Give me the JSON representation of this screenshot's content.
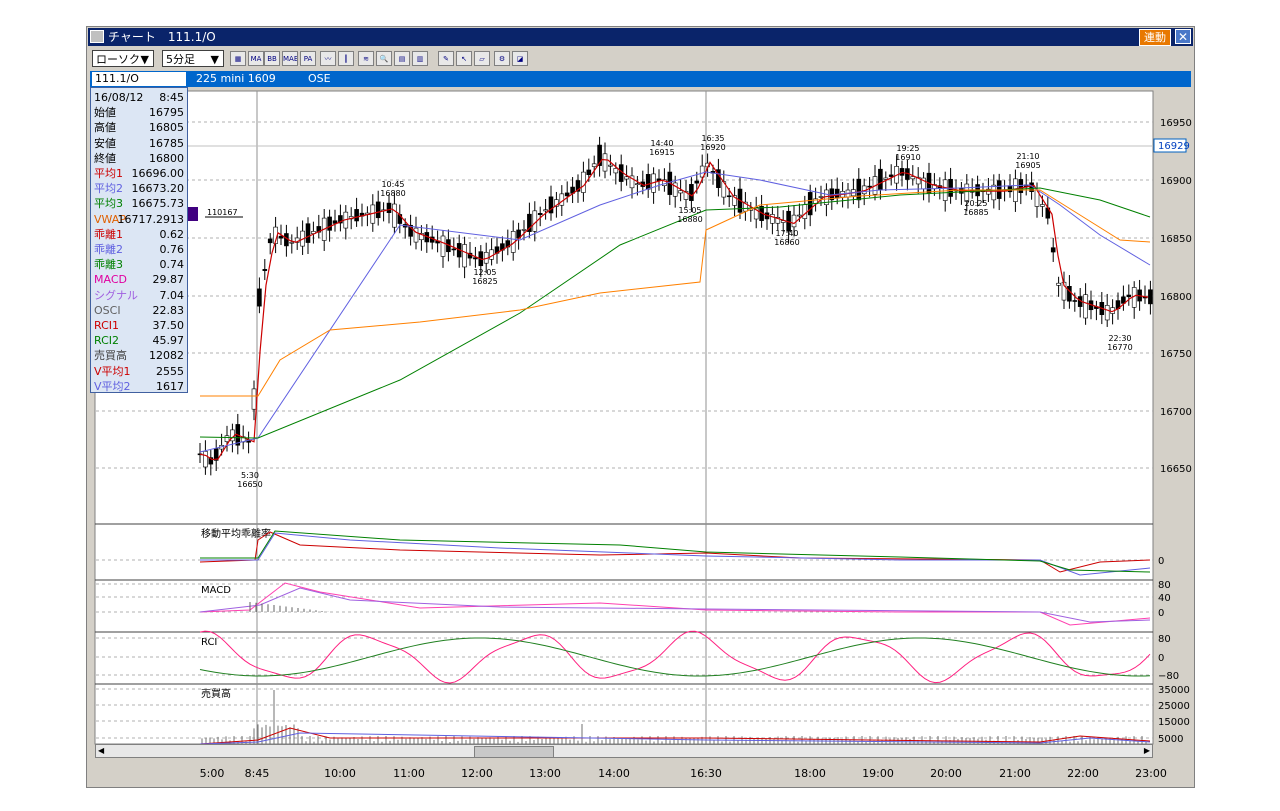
{
  "window": {
    "title": "チャート　111.1/O",
    "link_label": "連動",
    "close_label": "✕"
  },
  "toolbar": {
    "chart_type": "ローソク",
    "interval": "5分足",
    "tools": [
      {
        "name": "chart-icon",
        "label": "▦"
      },
      {
        "name": "ma-icon",
        "label": "MA"
      },
      {
        "name": "bb-icon",
        "label": "BB"
      },
      {
        "name": "mae-icon",
        "label": "MAE"
      },
      {
        "name": "pa-icon",
        "label": "PA"
      },
      {
        "name": "line-icon",
        "label": "〰"
      },
      {
        "name": "candle-icon",
        "label": "┃"
      },
      {
        "name": "fib-icon",
        "label": "≋"
      },
      {
        "name": "zoom-icon",
        "label": "🔍"
      },
      {
        "name": "table-icon",
        "label": "▤"
      },
      {
        "name": "bars-icon",
        "label": "▥"
      },
      {
        "name": "pen-icon",
        "label": "✎"
      },
      {
        "name": "cursor-icon",
        "label": "↖"
      },
      {
        "name": "eraser-icon",
        "label": "▱"
      },
      {
        "name": "settings-icon",
        "label": "⚙"
      },
      {
        "name": "clear-icon",
        "label": "◪"
      }
    ]
  },
  "infobar": {
    "symbol": "111.1/O",
    "instrument": "225 mini 1609",
    "exchange": "OSE"
  },
  "datapanel": {
    "rows": [
      {
        "label": "16/08/12",
        "value": "8:45",
        "color": "#000000"
      },
      {
        "label": "始値",
        "value": "16795",
        "color": "#000000"
      },
      {
        "label": "高値",
        "value": "16805",
        "color": "#000000"
      },
      {
        "label": "安値",
        "value": "16785",
        "color": "#000000"
      },
      {
        "label": "終値",
        "value": "16800",
        "color": "#000000"
      },
      {
        "label": "平均1",
        "value": "16696.00",
        "color": "#cc0000"
      },
      {
        "label": "平均2",
        "value": "16673.20",
        "color": "#6060e0"
      },
      {
        "label": "平均3",
        "value": "16675.73",
        "color": "#008000"
      },
      {
        "label": "VWAP",
        "value": "16717.2913",
        "color": "#e06000"
      },
      {
        "label": "乖離1",
        "value": "0.62",
        "color": "#cc0000"
      },
      {
        "label": "乖離2",
        "value": "0.76",
        "color": "#6060e0"
      },
      {
        "label": "乖離3",
        "value": "0.74",
        "color": "#008000"
      },
      {
        "label": "MACD",
        "value": "29.87",
        "color": "#e000a0"
      },
      {
        "label": "シグナル",
        "value": "7.04",
        "color": "#a060e0"
      },
      {
        "label": "OSCI",
        "value": "22.83",
        "color": "#606060"
      },
      {
        "label": "RCI1",
        "value": "37.50",
        "color": "#cc0000"
      },
      {
        "label": "RCI2",
        "value": "45.97",
        "color": "#008000"
      },
      {
        "label": "売買高",
        "value": "12082",
        "color": "#404040"
      },
      {
        "label": "V平均1",
        "value": "2555",
        "color": "#cc0000"
      },
      {
        "label": "V平均2",
        "value": "1617",
        "color": "#6060e0"
      }
    ]
  },
  "main_chart": {
    "price_ticks": [
      "16950",
      "16900",
      "16850",
      "16800",
      "16750",
      "16700",
      "16650"
    ],
    "current_price": "16929",
    "cursor_tag": "110167",
    "annotations": [
      {
        "time": "5:30",
        "price": "16650"
      },
      {
        "time": "10:45",
        "price": "16880"
      },
      {
        "time": "12:05",
        "price": "16825"
      },
      {
        "time": "14:40",
        "price": "16915"
      },
      {
        "time": "16:35",
        "price": "16920"
      },
      {
        "time": "15:05",
        "price": "16880"
      },
      {
        "time": "17:40",
        "price": "16860"
      },
      {
        "time": "19:25",
        "price": "16910"
      },
      {
        "time": "20:25",
        "price": "16885"
      },
      {
        "time": "21:10",
        "price": "16905"
      },
      {
        "time": "22:30",
        "price": "16770"
      }
    ]
  },
  "subcharts": [
    {
      "title": "移動平均乖離率",
      "ticks": [
        "0"
      ]
    },
    {
      "title": "MACD",
      "ticks": [
        "80",
        "40",
        "0"
      ]
    },
    {
      "title": "RCI",
      "ticks": [
        "80",
        "0",
        "−80"
      ]
    },
    {
      "title": "売買高",
      "ticks": [
        "35000",
        "25000",
        "15000",
        "5000"
      ]
    }
  ],
  "time_axis": [
    "5:00",
    "8:45",
    "10:00",
    "11:00",
    "12:00",
    "13:00",
    "14:00",
    "16:30",
    "18:00",
    "19:00",
    "20:00",
    "21:00",
    "22:00",
    "23:00"
  ],
  "colors": {
    "ma1": "#cc0000",
    "ma2": "#6060e0",
    "ma3": "#008000",
    "vwap": "#ff8000",
    "macd": "#ff40b0",
    "signal": "#a060e0"
  }
}
